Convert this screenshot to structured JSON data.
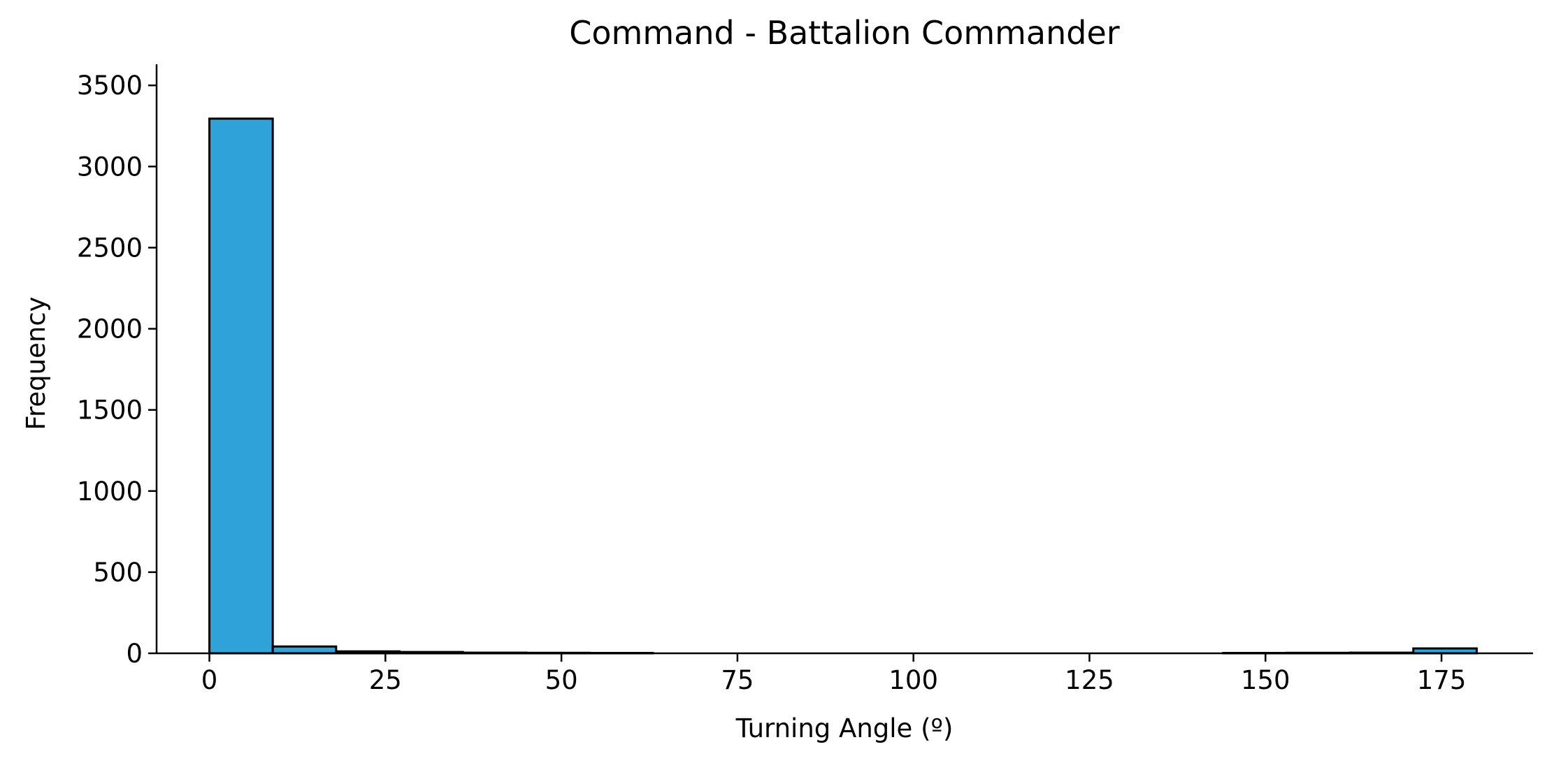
{
  "chart_data": {
    "type": "bar",
    "title": "Command - Battalion Commander",
    "xlabel": "Turning Angle (º)",
    "ylabel": "Frequency",
    "xlim": [
      -7.5,
      188
    ],
    "ylim": [
      0,
      3630
    ],
    "xticks": [
      0,
      25,
      50,
      75,
      100,
      125,
      150,
      175
    ],
    "yticks": [
      0,
      500,
      1000,
      1500,
      2000,
      2500,
      3000,
      3500
    ],
    "bin_edges": [
      0,
      9,
      18,
      27,
      36,
      45,
      54,
      63,
      72,
      81,
      90,
      99,
      108,
      117,
      126,
      135,
      144,
      153,
      162,
      171,
      180
    ],
    "values": [
      3295,
      42,
      12,
      8,
      4,
      3,
      2,
      0,
      0,
      0,
      0,
      0,
      0,
      0,
      0,
      0,
      2,
      3,
      4,
      30
    ],
    "bar_color": "#30a2da",
    "edge_color": "#000000",
    "grid": false,
    "spines": [
      "left",
      "bottom"
    ]
  }
}
